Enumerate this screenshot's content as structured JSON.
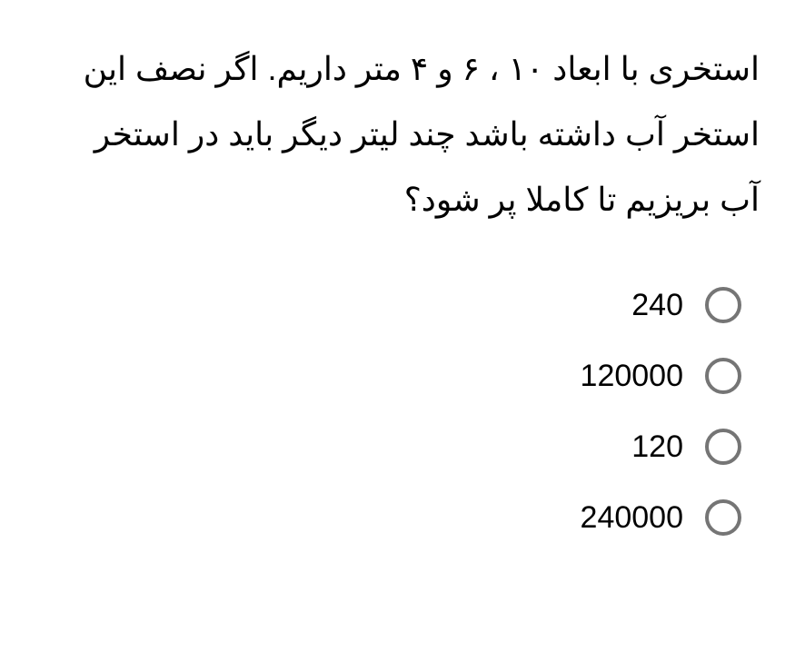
{
  "question": {
    "text": "استخری با ابعاد ۱۰ ، ۶ و ۴ متر داریم. اگر نصف این استخر آب داشته باشد چند لیتر دیگر باید در استخر آب بریزیم تا کاملا پر شود؟"
  },
  "options": [
    {
      "label": "240"
    },
    {
      "label": "120000"
    },
    {
      "label": "120"
    },
    {
      "label": "240000"
    }
  ],
  "colors": {
    "background": "#ffffff",
    "text": "#000000",
    "radio_border": "#757575"
  },
  "typography": {
    "question_fontsize": 36,
    "option_fontsize": 34,
    "line_height": 2.0
  }
}
